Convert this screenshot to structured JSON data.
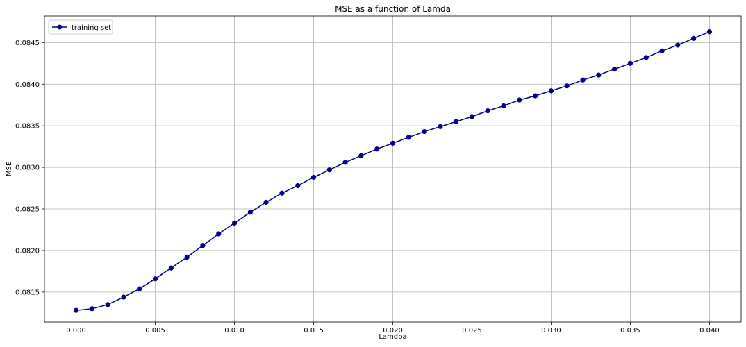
{
  "chart_data": {
    "type": "line",
    "title": "MSE as a function of Lamda",
    "xlabel": "Lamdba",
    "ylabel": "MSE",
    "grid": true,
    "legend_position": "top-left",
    "xlim": [
      -0.002,
      0.042
    ],
    "ylim": [
      0.08114,
      0.08482
    ],
    "x_ticks": [
      0.0,
      0.005,
      0.01,
      0.015,
      0.02,
      0.025,
      0.03,
      0.035,
      0.04
    ],
    "x_tick_labels": [
      "0.000",
      "0.005",
      "0.010",
      "0.015",
      "0.020",
      "0.025",
      "0.030",
      "0.035",
      "0.040"
    ],
    "y_ticks": [
      0.0815,
      0.082,
      0.0825,
      0.083,
      0.0835,
      0.084,
      0.0845
    ],
    "y_tick_labels": [
      "0.0815",
      "0.0820",
      "0.0825",
      "0.0830",
      "0.0835",
      "0.0840",
      "0.0845"
    ],
    "series": [
      {
        "name": "training set",
        "color": "#00008b",
        "marker": "circle",
        "x": [
          0.0,
          0.001,
          0.002,
          0.003,
          0.004,
          0.005,
          0.006,
          0.007,
          0.008,
          0.009,
          0.01,
          0.011,
          0.012,
          0.013,
          0.014,
          0.015,
          0.016,
          0.017,
          0.018,
          0.019,
          0.02,
          0.021,
          0.022,
          0.023,
          0.024,
          0.025,
          0.026,
          0.027,
          0.028,
          0.029,
          0.03,
          0.031,
          0.032,
          0.033,
          0.034,
          0.035,
          0.036,
          0.037,
          0.038,
          0.039,
          0.04
        ],
        "values": [
          0.08128,
          0.0813,
          0.08135,
          0.08144,
          0.08154,
          0.08166,
          0.08179,
          0.08192,
          0.08206,
          0.0822,
          0.08233,
          0.08246,
          0.08258,
          0.08269,
          0.08278,
          0.08288,
          0.08297,
          0.08306,
          0.08314,
          0.08322,
          0.08329,
          0.08336,
          0.08343,
          0.08349,
          0.08355,
          0.08361,
          0.08368,
          0.08374,
          0.08381,
          0.08386,
          0.08392,
          0.08398,
          0.08405,
          0.08411,
          0.08418,
          0.08425,
          0.08432,
          0.0844,
          0.08447,
          0.08455,
          0.08463
        ]
      }
    ]
  }
}
